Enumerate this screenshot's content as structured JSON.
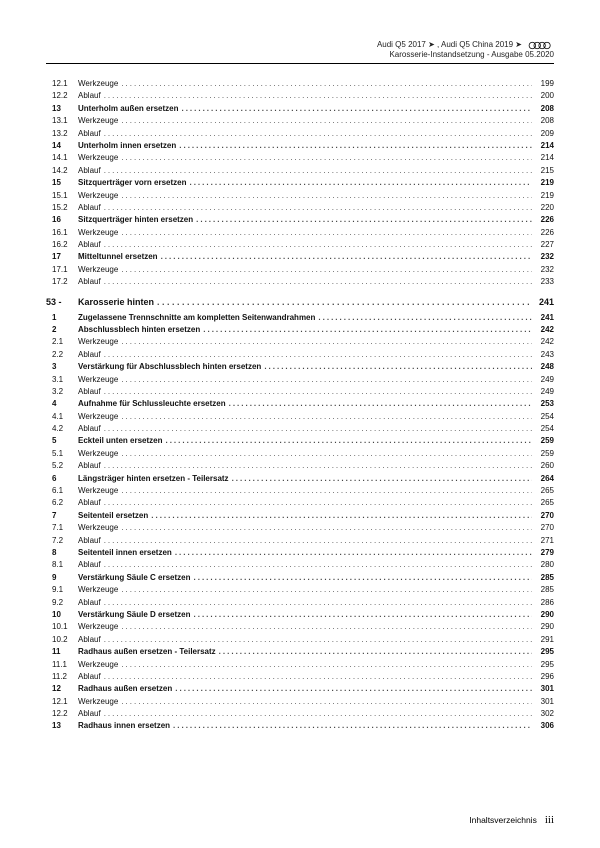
{
  "header": {
    "line1_pre": "Audi Q5 2017 ➤ , Audi Q5 China 2019 ➤",
    "line2": "Karosserie-Instandsetzung - Ausgabe 05.2020"
  },
  "top_entries": [
    {
      "n": "12.1",
      "t": "Werkzeuge",
      "p": "199",
      "b": false
    },
    {
      "n": "12.2",
      "t": "Ablauf",
      "p": "200",
      "b": false
    },
    {
      "n": "13",
      "t": "Unterholm außen ersetzen",
      "p": "208",
      "b": true
    },
    {
      "n": "13.1",
      "t": "Werkzeuge",
      "p": "208",
      "b": false
    },
    {
      "n": "13.2",
      "t": "Ablauf",
      "p": "209",
      "b": false
    },
    {
      "n": "14",
      "t": "Unterholm innen ersetzen",
      "p": "214",
      "b": true
    },
    {
      "n": "14.1",
      "t": "Werkzeuge",
      "p": "214",
      "b": false
    },
    {
      "n": "14.2",
      "t": "Ablauf",
      "p": "215",
      "b": false
    },
    {
      "n": "15",
      "t": "Sitzquerträger vorn ersetzen",
      "p": "219",
      "b": true
    },
    {
      "n": "15.1",
      "t": "Werkzeuge",
      "p": "219",
      "b": false
    },
    {
      "n": "15.2",
      "t": "Ablauf",
      "p": "220",
      "b": false
    },
    {
      "n": "16",
      "t": "Sitzquerträger hinten ersetzen",
      "p": "226",
      "b": true
    },
    {
      "n": "16.1",
      "t": "Werkzeuge",
      "p": "226",
      "b": false
    },
    {
      "n": "16.2",
      "t": "Ablauf",
      "p": "227",
      "b": false
    },
    {
      "n": "17",
      "t": "Mitteltunnel ersetzen",
      "p": "232",
      "b": true
    },
    {
      "n": "17.1",
      "t": "Werkzeuge",
      "p": "232",
      "b": false
    },
    {
      "n": "17.2",
      "t": "Ablauf",
      "p": "233",
      "b": false
    }
  ],
  "section": {
    "num": "53 -",
    "title": "Karosserie hinten",
    "page": "241"
  },
  "sec_entries": [
    {
      "n": "1",
      "t": "Zugelassene Trennschnitte am kompletten Seitenwandrahmen",
      "p": "241",
      "b": true
    },
    {
      "n": "2",
      "t": "Abschlussblech hinten ersetzen",
      "p": "242",
      "b": true
    },
    {
      "n": "2.1",
      "t": "Werkzeuge",
      "p": "242",
      "b": false
    },
    {
      "n": "2.2",
      "t": "Ablauf",
      "p": "243",
      "b": false
    },
    {
      "n": "3",
      "t": "Verstärkung für Abschlussblech hinten ersetzen",
      "p": "248",
      "b": true
    },
    {
      "n": "3.1",
      "t": "Werkzeuge",
      "p": "249",
      "b": false
    },
    {
      "n": "3.2",
      "t": "Ablauf",
      "p": "249",
      "b": false
    },
    {
      "n": "4",
      "t": "Aufnahme für Schlussleuchte ersetzen",
      "p": "253",
      "b": true
    },
    {
      "n": "4.1",
      "t": "Werkzeuge",
      "p": "254",
      "b": false
    },
    {
      "n": "4.2",
      "t": "Ablauf",
      "p": "254",
      "b": false
    },
    {
      "n": "5",
      "t": "Eckteil unten ersetzen",
      "p": "259",
      "b": true
    },
    {
      "n": "5.1",
      "t": "Werkzeuge",
      "p": "259",
      "b": false
    },
    {
      "n": "5.2",
      "t": "Ablauf",
      "p": "260",
      "b": false
    },
    {
      "n": "6",
      "t": "Längsträger hinten ersetzen - Teilersatz",
      "p": "264",
      "b": true
    },
    {
      "n": "6.1",
      "t": "Werkzeuge",
      "p": "265",
      "b": false
    },
    {
      "n": "6.2",
      "t": "Ablauf",
      "p": "265",
      "b": false
    },
    {
      "n": "7",
      "t": "Seitenteil ersetzen",
      "p": "270",
      "b": true
    },
    {
      "n": "7.1",
      "t": "Werkzeuge",
      "p": "270",
      "b": false
    },
    {
      "n": "7.2",
      "t": "Ablauf",
      "p": "271",
      "b": false
    },
    {
      "n": "8",
      "t": "Seitenteil innen ersetzen",
      "p": "279",
      "b": true
    },
    {
      "n": "8.1",
      "t": "Ablauf",
      "p": "280",
      "b": false
    },
    {
      "n": "9",
      "t": "Verstärkung Säule C ersetzen",
      "p": "285",
      "b": true
    },
    {
      "n": "9.1",
      "t": "Werkzeuge",
      "p": "285",
      "b": false
    },
    {
      "n": "9.2",
      "t": "Ablauf",
      "p": "286",
      "b": false
    },
    {
      "n": "10",
      "t": "Verstärkung Säule D ersetzen",
      "p": "290",
      "b": true
    },
    {
      "n": "10.1",
      "t": "Werkzeuge",
      "p": "290",
      "b": false
    },
    {
      "n": "10.2",
      "t": "Ablauf",
      "p": "291",
      "b": false
    },
    {
      "n": "11",
      "t": "Radhaus außen ersetzen - Teilersatz",
      "p": "295",
      "b": true
    },
    {
      "n": "11.1",
      "t": "Werkzeuge",
      "p": "295",
      "b": false
    },
    {
      "n": "11.2",
      "t": "Ablauf",
      "p": "296",
      "b": false
    },
    {
      "n": "12",
      "t": "Radhaus außen ersetzen",
      "p": "301",
      "b": true
    },
    {
      "n": "12.1",
      "t": "Werkzeuge",
      "p": "301",
      "b": false
    },
    {
      "n": "12.2",
      "t": "Ablauf",
      "p": "302",
      "b": false
    },
    {
      "n": "13",
      "t": "Radhaus innen ersetzen",
      "p": "306",
      "b": true
    }
  ],
  "footer": {
    "label": "Inhaltsverzeichnis",
    "page": "iii"
  }
}
